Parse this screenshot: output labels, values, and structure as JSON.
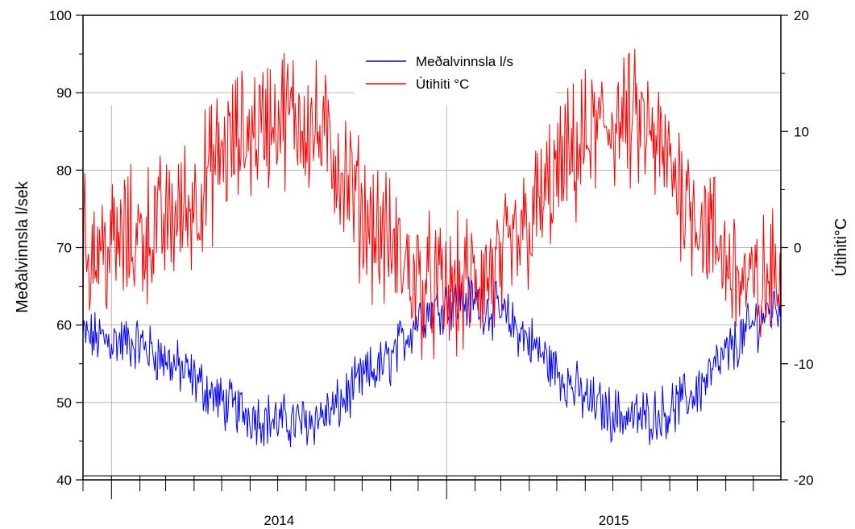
{
  "chart_data": {
    "type": "line",
    "xlabel": "",
    "x_tick_labels": [
      "2014",
      "2015"
    ],
    "x_range": [
      "2013-12-01",
      "2015-12-31"
    ],
    "y_left": {
      "label": "Meðalvinnsla l/sek",
      "range": [
        40,
        100
      ],
      "tick_labels": [
        "40",
        "50",
        "60",
        "70",
        "80",
        "90",
        "100"
      ]
    },
    "y_right": {
      "label": "Útihiti°C",
      "range": [
        -20,
        20
      ],
      "tick_labels": [
        "-20",
        "-10",
        "0",
        "10",
        "20"
      ]
    },
    "grid": true,
    "legend_position": "top-center",
    "series": [
      {
        "name": "Meðalvinnsla l/s",
        "axis": "left",
        "color": "#0000ff",
        "monthly_x": [
          "2013-12-01",
          "2014-01-01",
          "2014-02-01",
          "2014-03-01",
          "2014-04-01",
          "2014-05-01",
          "2014-06-01",
          "2014-07-01",
          "2014-08-01",
          "2014-09-01",
          "2014-10-01",
          "2014-11-01",
          "2014-12-01",
          "2015-01-01",
          "2015-02-01",
          "2015-03-01",
          "2015-04-01",
          "2015-05-01",
          "2015-06-01",
          "2015-07-01",
          "2015-08-01",
          "2015-09-01",
          "2015-10-01",
          "2015-11-01",
          "2015-12-01",
          "2015-12-31"
        ],
        "monthly_y": [
          58.5,
          58,
          57.5,
          55.5,
          53,
          50,
          48.5,
          47.5,
          47.5,
          49,
          53,
          55.5,
          61,
          63,
          63,
          61.5,
          58,
          54,
          50.5,
          48.5,
          48,
          49,
          51.5,
          56,
          60,
          63
        ],
        "spread": 2.8
      },
      {
        "name": "Útihiti °C",
        "axis": "right",
        "color": "#ff0000",
        "monthly_x": [
          "2013-12-01",
          "2014-01-01",
          "2014-02-01",
          "2014-03-01",
          "2014-04-01",
          "2014-05-01",
          "2014-06-01",
          "2014-07-01",
          "2014-08-01",
          "2014-09-01",
          "2014-10-01",
          "2014-11-01",
          "2014-12-01",
          "2015-01-01",
          "2015-02-01",
          "2015-03-01",
          "2015-04-01",
          "2015-05-01",
          "2015-06-01",
          "2015-07-01",
          "2015-08-01",
          "2015-09-01",
          "2015-10-01",
          "2015-11-01",
          "2015-12-01",
          "2015-12-31"
        ],
        "monthly_y": [
          0,
          0,
          1,
          2,
          4,
          8,
          10,
          11.5,
          11,
          8,
          3,
          0,
          -3,
          -4,
          -3,
          -2,
          2,
          6,
          9,
          11,
          10.5,
          7,
          3,
          -1,
          -4,
          -2
        ],
        "spread": 4.8
      }
    ]
  }
}
